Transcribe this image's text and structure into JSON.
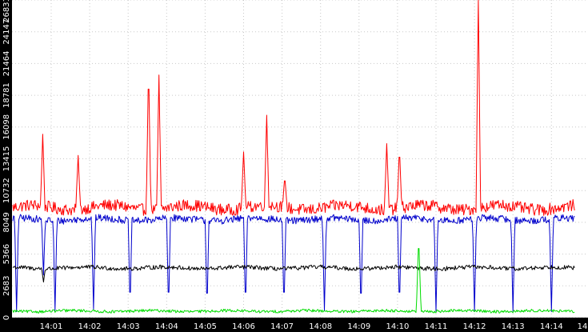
{
  "chart_data": {
    "type": "line",
    "title": "",
    "xlabel": "",
    "ylabel": "",
    "ylim": [
      0,
      26831
    ],
    "yticks": [
      0,
      2683,
      5366,
      8049,
      10732,
      13415,
      16098,
      18781,
      21464,
      24147,
      26831
    ],
    "xlim_minutes": [
      0,
      14.6
    ],
    "xticks": [
      "14:01",
      "14:02",
      "14:03",
      "14:04",
      "14:05",
      "14:06",
      "14:07",
      "14:08",
      "14:09",
      "14:10",
      "14:11",
      "14:12",
      "14:13",
      "14:14",
      "14"
    ],
    "grid": true,
    "series_colors": {
      "red": "#ff0000",
      "blue": "#0000cc",
      "black": "#000000",
      "green": "#00dd00"
    },
    "series": [
      {
        "color": "#ff0000",
        "baseline": 9300,
        "noise": 500,
        "spikes": [
          {
            "t": 0.78,
            "v": 15500
          },
          {
            "t": 1.7,
            "v": 13700
          },
          {
            "t": 3.53,
            "v": 21300
          },
          {
            "t": 3.8,
            "v": 20500
          },
          {
            "t": 6.0,
            "v": 14000
          },
          {
            "t": 6.6,
            "v": 17100
          },
          {
            "t": 7.07,
            "v": 12000
          },
          {
            "t": 9.72,
            "v": 14700
          },
          {
            "t": 10.05,
            "v": 14400
          },
          {
            "t": 12.1,
            "v": 26831
          }
        ],
        "dips": []
      },
      {
        "color": "#0000cc",
        "baseline": 8300,
        "noise": 300,
        "spikes": [],
        "dips": [
          {
            "t": 0.1,
            "v": 500
          },
          {
            "t": 0.8,
            "v": 3600
          },
          {
            "t": 1.1,
            "v": 600
          },
          {
            "t": 2.1,
            "v": 700
          },
          {
            "t": 3.05,
            "v": 600
          },
          {
            "t": 4.05,
            "v": 600
          },
          {
            "t": 5.05,
            "v": 500
          },
          {
            "t": 6.05,
            "v": 600
          },
          {
            "t": 7.05,
            "v": 600
          },
          {
            "t": 8.1,
            "v": 600
          },
          {
            "t": 9.05,
            "v": 500
          },
          {
            "t": 10.05,
            "v": 600
          },
          {
            "t": 11.0,
            "v": 500
          },
          {
            "t": 12.0,
            "v": 500
          },
          {
            "t": 13.0,
            "v": 500
          },
          {
            "t": 14.0,
            "v": 500
          }
        ]
      },
      {
        "color": "#000000",
        "baseline": 4200,
        "noise": 180,
        "spikes": [],
        "dips": [
          {
            "t": 0.8,
            "v": 3000
          }
        ]
      },
      {
        "color": "#00dd00",
        "baseline": 550,
        "noise": 120,
        "spikes": [
          {
            "t": 10.55,
            "v": 6900
          }
        ],
        "dips": []
      }
    ]
  }
}
